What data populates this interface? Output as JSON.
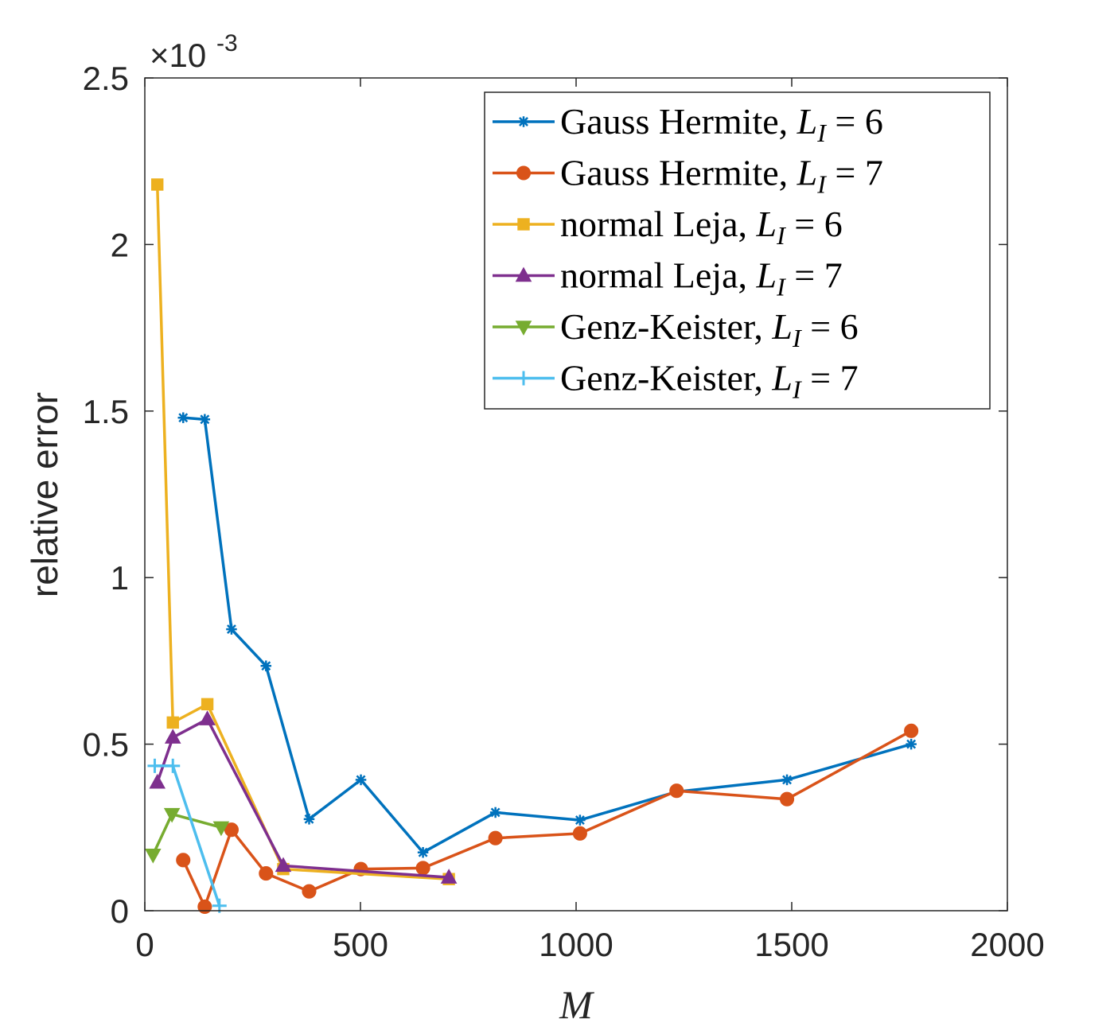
{
  "chart_data": {
    "type": "line",
    "xlabel": "M",
    "ylabel": "relative error",
    "xlim": [
      0,
      2000
    ],
    "ylim": [
      0,
      2.5
    ],
    "y_multiplier": "×10",
    "y_exponent": "-3",
    "xticks": [
      0,
      500,
      1000,
      1500,
      2000
    ],
    "xtick_labels": [
      "0",
      "500",
      "1000",
      "1500",
      "2000"
    ],
    "yticks": [
      0,
      0.5,
      1,
      1.5,
      2,
      2.5
    ],
    "ytick_labels": [
      "0",
      "0.5",
      "1",
      "1.5",
      "2",
      "2.5"
    ],
    "grid": false,
    "legend_position": "top-right",
    "series": [
      {
        "name": "Gauss Hermite, L_I = 6",
        "legend": {
          "prefix": "Gauss Hermite, ",
          "var": "L",
          "sub": "I",
          "suffix": " = 6"
        },
        "color": "#0072BD",
        "marker": "asterisk",
        "x": [
          89,
          139,
          201,
          281,
          381,
          501,
          645,
          813,
          1009,
          1233,
          1489,
          1777
        ],
        "y": [
          1.48,
          1.475,
          0.845,
          0.735,
          0.275,
          0.393,
          0.175,
          0.295,
          0.272,
          0.357,
          0.393,
          0.5
        ]
      },
      {
        "name": "Gauss Hermite, L_I = 7",
        "legend": {
          "prefix": "Gauss Hermite, ",
          "var": "L",
          "sub": "I",
          "suffix": " = 7"
        },
        "color": "#D95319",
        "marker": "circle",
        "x": [
          89,
          139,
          201,
          281,
          381,
          501,
          645,
          813,
          1009,
          1233,
          1489,
          1777
        ],
        "y": [
          0.152,
          0.012,
          0.243,
          0.112,
          0.058,
          0.125,
          0.128,
          0.218,
          0.232,
          0.36,
          0.335,
          0.54
        ]
      },
      {
        "name": "normal Leja, L_I = 6",
        "legend": {
          "prefix": "normal Leja, ",
          "var": "L",
          "sub": "I",
          "suffix": " = 6"
        },
        "color": "#EDB120",
        "marker": "square",
        "x": [
          29,
          65,
          145,
          321,
          705
        ],
        "y": [
          2.18,
          0.565,
          0.62,
          0.125,
          0.095
        ]
      },
      {
        "name": "normal Leja, L_I = 7",
        "legend": {
          "prefix": "normal Leja, ",
          "var": "L",
          "sub": "I",
          "suffix": " = 7"
        },
        "color": "#7E2F8E",
        "marker": "triangle-up",
        "x": [
          29,
          65,
          145,
          321,
          705
        ],
        "y": [
          0.385,
          0.52,
          0.575,
          0.135,
          0.1
        ]
      },
      {
        "name": "Genz-Keister, L_I = 6",
        "legend": {
          "prefix": "Genz-Keister, ",
          "var": "L",
          "sub": "I",
          "suffix": " = 6"
        },
        "color": "#77AC30",
        "marker": "triangle-down",
        "x": [
          19,
          63,
          177
        ],
        "y": [
          0.168,
          0.29,
          0.25
        ]
      },
      {
        "name": "Genz-Keister, L_I = 7",
        "legend": {
          "prefix": "Genz-Keister, ",
          "var": "L",
          "sub": "I",
          "suffix": " = 7"
        },
        "color": "#4DBEEE",
        "marker": "plus",
        "x": [
          23,
          65,
          173
        ],
        "y": [
          0.435,
          0.435,
          0.015
        ]
      }
    ]
  }
}
